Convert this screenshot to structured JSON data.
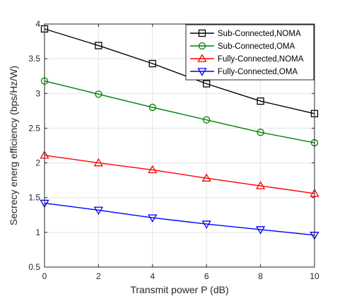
{
  "chart_data": {
    "type": "line",
    "xlabel": "Transmit power P (dB)",
    "ylabel": "Secrecy energ efficiency (bps/Hz/W)",
    "xlim": [
      0,
      10
    ],
    "ylim": [
      0.5,
      4
    ],
    "xticks": [
      0,
      2,
      4,
      6,
      8,
      10
    ],
    "yticks": [
      0.5,
      1,
      1.5,
      2,
      2.5,
      3,
      3.5,
      4
    ],
    "xtick_labels": [
      "0",
      "2",
      "4",
      "6",
      "8",
      "10"
    ],
    "ytick_labels": [
      "0.5",
      "1",
      "1.5",
      "2",
      "2.5",
      "3",
      "3.5",
      "4"
    ],
    "grid": true,
    "legend_position": "top-right",
    "x": [
      0,
      2,
      4,
      6,
      8,
      10
    ],
    "series": [
      {
        "name": "Sub-Connected,NOMA",
        "color": "#000000",
        "marker": "square",
        "values": [
          3.93,
          3.69,
          3.43,
          3.14,
          2.89,
          2.71
        ]
      },
      {
        "name": "Sub-Connected,OMA",
        "color": "#008000",
        "marker": "circle",
        "values": [
          3.18,
          2.99,
          2.8,
          2.62,
          2.44,
          2.29
        ]
      },
      {
        "name": "Fully-Connected,NOMA",
        "color": "#ff0000",
        "marker": "triangle-up",
        "values": [
          2.11,
          2.0,
          1.9,
          1.78,
          1.67,
          1.56
        ]
      },
      {
        "name": "Fully-Connected,OMA",
        "color": "#0000ff",
        "marker": "triangle-down",
        "values": [
          1.42,
          1.32,
          1.21,
          1.12,
          1.04,
          0.96
        ]
      }
    ]
  }
}
